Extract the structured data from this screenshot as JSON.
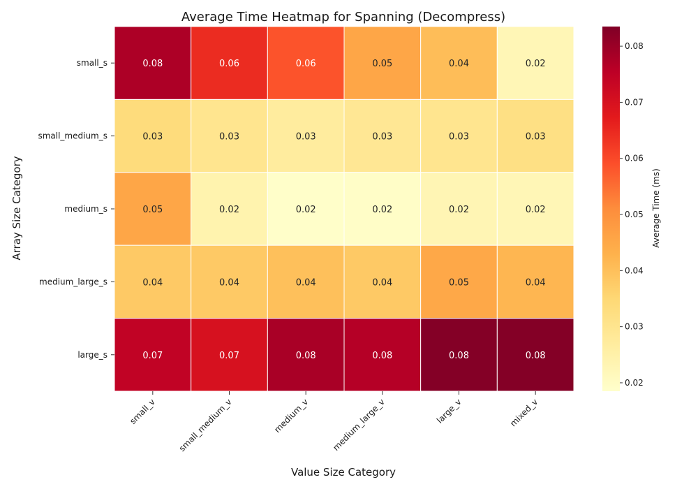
{
  "chart_data": {
    "type": "heatmap",
    "title": "Average Time Heatmap for Spanning (Decompress)",
    "xlabel": "Value Size Category",
    "ylabel": "Array Size Category",
    "x_categories": [
      "small_v",
      "small_medium_v",
      "medium_v",
      "medium_large_v",
      "large_v",
      "mixed_v"
    ],
    "y_categories": [
      "small_s",
      "small_medium_s",
      "medium_s",
      "medium_large_s",
      "large_s"
    ],
    "values": [
      [
        0.0775,
        0.0645,
        0.0585,
        0.0455,
        0.0405,
        0.0225
      ],
      [
        0.0335,
        0.03,
        0.027,
        0.029,
        0.03,
        0.032
      ],
      [
        0.0455,
        0.024,
        0.019,
        0.0195,
        0.023,
        0.0225
      ],
      [
        0.038,
        0.038,
        0.04,
        0.038,
        0.045,
        0.042
      ],
      [
        0.0745,
        0.07,
        0.078,
        0.0765,
        0.083,
        0.083
      ]
    ],
    "annotations": [
      [
        "0.08",
        "0.06",
        "0.06",
        "0.05",
        "0.04",
        "0.02"
      ],
      [
        "0.03",
        "0.03",
        "0.03",
        "0.03",
        "0.03",
        "0.03"
      ],
      [
        "0.05",
        "0.02",
        "0.02",
        "0.02",
        "0.02",
        "0.02"
      ],
      [
        "0.04",
        "0.04",
        "0.04",
        "0.04",
        "0.05",
        "0.04"
      ],
      [
        "0.07",
        "0.07",
        "0.08",
        "0.08",
        "0.08",
        "0.08"
      ]
    ],
    "colorbar": {
      "label": "Average Time (ms)",
      "min": 0.0185,
      "max": 0.0835,
      "ticks": [
        "0.02",
        "0.03",
        "0.04",
        "0.05",
        "0.06",
        "0.07",
        "0.08"
      ],
      "tick_values": [
        0.02,
        0.03,
        0.04,
        0.05,
        0.06,
        0.07,
        0.08
      ]
    },
    "colormap": "YlOrRd",
    "colormap_stops": [
      "#ffffcc",
      "#ffeda0",
      "#fed976",
      "#feb24c",
      "#fd8d3c",
      "#fc4e2a",
      "#e31a1c",
      "#bd0026",
      "#800026"
    ],
    "gridlines": "white"
  }
}
